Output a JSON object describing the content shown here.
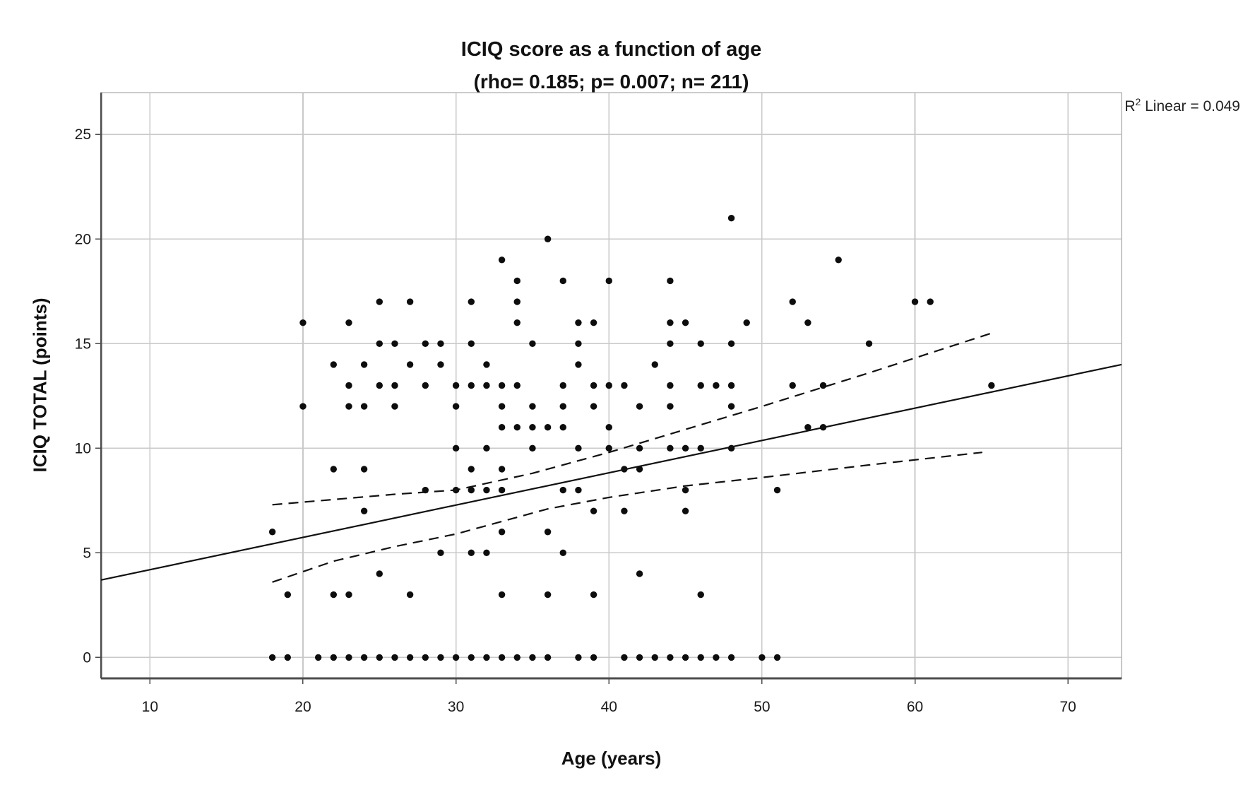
{
  "chart_data": {
    "type": "scatter",
    "title": "ICIQ score as a function of age",
    "subtitle": "(rho= 0.185; p= 0.007; n= 211)",
    "xlabel": "Age (years)",
    "ylabel": "ICIQ TOTAL (points)",
    "x_ticks": [
      10,
      20,
      30,
      40,
      50,
      60,
      70
    ],
    "y_ticks": [
      0,
      5,
      10,
      15,
      20,
      25
    ],
    "xlim": [
      6.8,
      73.5
    ],
    "ylim": [
      -1,
      27
    ],
    "grid": true,
    "legend_position": "none",
    "r2_annotation": {
      "base": "R",
      "exp": "2",
      "rest": " Linear = 0.049"
    },
    "n_reported": 211,
    "points": [
      [
        18,
        0
      ],
      [
        19,
        0
      ],
      [
        21,
        0
      ],
      [
        22,
        0
      ],
      [
        23,
        0
      ],
      [
        24,
        0
      ],
      [
        25,
        0
      ],
      [
        26,
        0
      ],
      [
        27,
        0
      ],
      [
        28,
        0
      ],
      [
        29,
        0
      ],
      [
        30,
        0
      ],
      [
        31,
        0
      ],
      [
        32,
        0
      ],
      [
        33,
        0
      ],
      [
        34,
        0
      ],
      [
        35,
        0
      ],
      [
        36,
        0
      ],
      [
        38,
        0
      ],
      [
        39,
        0
      ],
      [
        41,
        0
      ],
      [
        42,
        0
      ],
      [
        43,
        0
      ],
      [
        44,
        0
      ],
      [
        45,
        0
      ],
      [
        46,
        0
      ],
      [
        47,
        0
      ],
      [
        48,
        0
      ],
      [
        50,
        0
      ],
      [
        51,
        0
      ],
      [
        19,
        3
      ],
      [
        22,
        3
      ],
      [
        23,
        3
      ],
      [
        27,
        3
      ],
      [
        33,
        3
      ],
      [
        36,
        3
      ],
      [
        39,
        3
      ],
      [
        46,
        3
      ],
      [
        25,
        4
      ],
      [
        42,
        4
      ],
      [
        29,
        5
      ],
      [
        31,
        5
      ],
      [
        32,
        5
      ],
      [
        37,
        5
      ],
      [
        18,
        6
      ],
      [
        33,
        6
      ],
      [
        36,
        6
      ],
      [
        24,
        7
      ],
      [
        39,
        7
      ],
      [
        41,
        7
      ],
      [
        45,
        7
      ],
      [
        28,
        8
      ],
      [
        30,
        8
      ],
      [
        31,
        8
      ],
      [
        32,
        8
      ],
      [
        33,
        8
      ],
      [
        37,
        8
      ],
      [
        38,
        8
      ],
      [
        45,
        8
      ],
      [
        51,
        8
      ],
      [
        22,
        9
      ],
      [
        24,
        9
      ],
      [
        31,
        9
      ],
      [
        33,
        9
      ],
      [
        41,
        9
      ],
      [
        42,
        9
      ],
      [
        30,
        10
      ],
      [
        32,
        10
      ],
      [
        35,
        10
      ],
      [
        38,
        10
      ],
      [
        40,
        10
      ],
      [
        42,
        10
      ],
      [
        44,
        10
      ],
      [
        45,
        10
      ],
      [
        46,
        10
      ],
      [
        48,
        10
      ],
      [
        33,
        11
      ],
      [
        34,
        11
      ],
      [
        35,
        11
      ],
      [
        36,
        11
      ],
      [
        37,
        11
      ],
      [
        40,
        11
      ],
      [
        53,
        11
      ],
      [
        54,
        11
      ],
      [
        20,
        12
      ],
      [
        23,
        12
      ],
      [
        24,
        12
      ],
      [
        26,
        12
      ],
      [
        30,
        12
      ],
      [
        33,
        12
      ],
      [
        35,
        12
      ],
      [
        37,
        12
      ],
      [
        39,
        12
      ],
      [
        42,
        12
      ],
      [
        44,
        12
      ],
      [
        48,
        12
      ],
      [
        23,
        13
      ],
      [
        25,
        13
      ],
      [
        26,
        13
      ],
      [
        28,
        13
      ],
      [
        30,
        13
      ],
      [
        31,
        13
      ],
      [
        32,
        13
      ],
      [
        33,
        13
      ],
      [
        34,
        13
      ],
      [
        37,
        13
      ],
      [
        39,
        13
      ],
      [
        40,
        13
      ],
      [
        41,
        13
      ],
      [
        44,
        13
      ],
      [
        46,
        13
      ],
      [
        47,
        13
      ],
      [
        48,
        13
      ],
      [
        52,
        13
      ],
      [
        54,
        13
      ],
      [
        65,
        13
      ],
      [
        22,
        14
      ],
      [
        24,
        14
      ],
      [
        27,
        14
      ],
      [
        29,
        14
      ],
      [
        32,
        14
      ],
      [
        38,
        14
      ],
      [
        43,
        14
      ],
      [
        25,
        15
      ],
      [
        26,
        15
      ],
      [
        28,
        15
      ],
      [
        29,
        15
      ],
      [
        31,
        15
      ],
      [
        35,
        15
      ],
      [
        38,
        15
      ],
      [
        44,
        15
      ],
      [
        46,
        15
      ],
      [
        48,
        15
      ],
      [
        57,
        15
      ],
      [
        20,
        16
      ],
      [
        23,
        16
      ],
      [
        34,
        16
      ],
      [
        38,
        16
      ],
      [
        39,
        16
      ],
      [
        44,
        16
      ],
      [
        45,
        16
      ],
      [
        49,
        16
      ],
      [
        53,
        16
      ],
      [
        25,
        17
      ],
      [
        27,
        17
      ],
      [
        31,
        17
      ],
      [
        34,
        17
      ],
      [
        52,
        17
      ],
      [
        60,
        17
      ],
      [
        61,
        17
      ],
      [
        34,
        18
      ],
      [
        37,
        18
      ],
      [
        40,
        18
      ],
      [
        44,
        18
      ],
      [
        33,
        19
      ],
      [
        55,
        19
      ],
      [
        36,
        20
      ],
      [
        48,
        21
      ]
    ],
    "regression_line": {
      "x1": 6.8,
      "y1": 3.7,
      "x2": 73.5,
      "y2": 14.0
    },
    "ci_upper": [
      [
        18,
        7.3
      ],
      [
        22,
        7.55
      ],
      [
        26,
        7.8
      ],
      [
        30,
        8.0
      ],
      [
        35,
        8.8
      ],
      [
        40,
        9.8
      ],
      [
        45,
        10.9
      ],
      [
        50,
        12.0
      ],
      [
        57,
        13.6
      ],
      [
        65,
        15.5
      ]
    ],
    "ci_lower": [
      [
        18,
        3.6
      ],
      [
        22,
        4.6
      ],
      [
        26,
        5.3
      ],
      [
        30,
        5.9
      ],
      [
        36,
        7.1
      ],
      [
        40,
        7.65
      ],
      [
        45,
        8.2
      ],
      [
        50,
        8.6
      ],
      [
        57,
        9.2
      ],
      [
        64.4,
        9.8
      ]
    ]
  },
  "colors": {
    "background": "#ffffff",
    "marker": "#0d0d0d",
    "grid": "#c9c9c9",
    "frame": "#b5b5b5",
    "axis": "#4d4d4d",
    "line": "#111111",
    "text": "#1a1a1a"
  }
}
